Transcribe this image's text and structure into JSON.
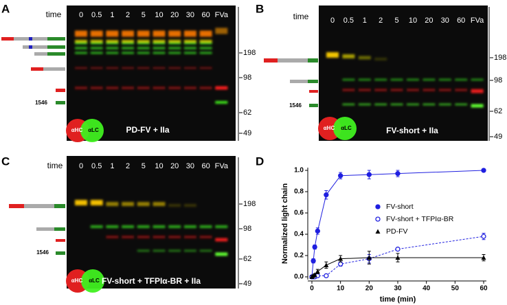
{
  "gels": [
    {
      "panel_label": "A",
      "lane_header": "time",
      "lanes": [
        "0",
        "0.5",
        "1",
        "2",
        "5",
        "10",
        "20",
        "30",
        "60",
        "FVa"
      ],
      "markers": [
        "198",
        "98",
        "62",
        "49"
      ],
      "band_label": "1546",
      "legend": [
        "αHC",
        "αLC"
      ],
      "caption": "PD-FV + IIa"
    },
    {
      "panel_label": "B",
      "lane_header": "time",
      "lanes": [
        "0",
        "0.5",
        "1",
        "2",
        "5",
        "10",
        "20",
        "30",
        "60",
        "FVa"
      ],
      "markers": [
        "198",
        "98",
        "62",
        "49"
      ],
      "band_label": "1546",
      "legend": [
        "αHC",
        "αLC"
      ],
      "caption": "FV-short + IIa"
    },
    {
      "panel_label": "C",
      "lane_header": "time",
      "lanes": [
        "0",
        "0.5",
        "1",
        "2",
        "5",
        "10",
        "20",
        "30",
        "60",
        "FVa"
      ],
      "markers": [
        "198",
        "98",
        "62",
        "49"
      ],
      "band_label": "1546",
      "legend": [
        "αHC",
        "αLC"
      ],
      "caption": "FV-short + TFPIα-BR + IIa"
    }
  ],
  "chart_data": {
    "type": "line",
    "panel_label": "D",
    "x_label": "time (min)",
    "y_label": "Normalized light chain",
    "x": [
      0,
      0.5,
      1,
      2,
      5,
      10,
      20,
      30,
      60
    ],
    "series": [
      {
        "name": "FV-short",
        "color": "#1f1fe0",
        "marker": "filled-circle",
        "line_style": "solid",
        "values": [
          0.0,
          0.15,
          0.28,
          0.43,
          0.77,
          0.95,
          0.96,
          0.97,
          1.0
        ],
        "errors": [
          0.01,
          0.02,
          0.02,
          0.03,
          0.04,
          0.03,
          0.04,
          0.03,
          0.01
        ]
      },
      {
        "name": "FV-short + TFPIα-BR",
        "color": "#1f1fe0",
        "marker": "open-circle",
        "line_style": "dashed",
        "values": [
          0.0,
          0.0,
          0.0,
          0.01,
          0.01,
          0.12,
          0.17,
          0.26,
          0.38
        ],
        "errors": [
          0.01,
          0.01,
          0.01,
          0.01,
          0.01,
          0.02,
          0.04,
          0.01,
          0.03
        ]
      },
      {
        "name": "PD-FV",
        "color": "#000000",
        "marker": "triangle",
        "line_style": "solid",
        "values": [
          0.0,
          0.01,
          0.02,
          0.05,
          0.11,
          0.17,
          0.18,
          0.18,
          0.18
        ],
        "errors": [
          0.01,
          0.01,
          0.01,
          0.02,
          0.03,
          0.03,
          0.06,
          0.04,
          0.03
        ]
      }
    ],
    "xlim": [
      0,
      60
    ],
    "xticks": [
      0,
      10,
      20,
      30,
      40,
      50,
      60
    ],
    "ylim": [
      0,
      1
    ],
    "yticks": [
      {
        "value": 0,
        "label": "0.0"
      },
      0.2,
      0.4,
      0.6,
      0.8,
      {
        "value": 1,
        "label": "1.0"
      }
    ],
    "legend_position": "right"
  }
}
